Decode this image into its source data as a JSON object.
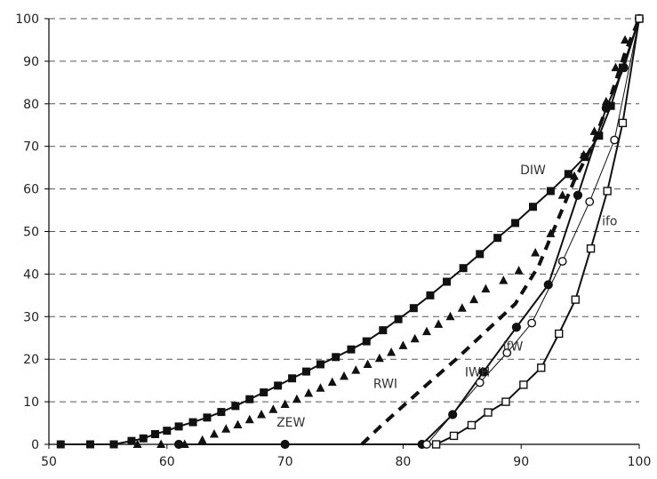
{
  "chart_data": {
    "type": "line",
    "title": "",
    "xlabel": "",
    "ylabel": "",
    "xlim": [
      50,
      100
    ],
    "ylim": [
      0,
      100
    ],
    "x_ticks": [
      50,
      60,
      70,
      80,
      90,
      100
    ],
    "y_ticks": [
      0,
      10,
      20,
      30,
      40,
      50,
      60,
      70,
      80,
      90,
      100
    ],
    "grid": "horizontal-dashed",
    "series": [
      {
        "name": "DIW",
        "style": "solid-line",
        "marker": "filled-square",
        "points": [
          [
            51,
            0
          ],
          [
            53.5,
            0
          ],
          [
            55.5,
            0
          ],
          [
            57,
            0.8
          ],
          [
            58,
            1.4
          ],
          [
            59,
            2.4
          ],
          [
            60,
            3.2
          ],
          [
            61,
            4.2
          ],
          [
            62.2,
            5.2
          ],
          [
            63.4,
            6.3
          ],
          [
            64.6,
            7.6
          ],
          [
            65.8,
            9
          ],
          [
            67,
            10.6
          ],
          [
            68.2,
            12.2
          ],
          [
            69.4,
            13.8
          ],
          [
            70.6,
            15.5
          ],
          [
            71.8,
            17.1
          ],
          [
            73,
            18.8
          ],
          [
            74.3,
            20.5
          ],
          [
            75.6,
            22.3
          ],
          [
            76.9,
            24.2
          ],
          [
            78.3,
            26.8
          ],
          [
            79.6,
            29.4
          ],
          [
            80.9,
            32
          ],
          [
            82.3,
            35
          ],
          [
            83.7,
            38.2
          ],
          [
            85.1,
            41.4
          ],
          [
            86.5,
            44.7
          ],
          [
            88,
            48.5
          ],
          [
            89.5,
            52
          ],
          [
            91,
            55.8
          ],
          [
            92.5,
            59.5
          ],
          [
            94,
            63.5
          ],
          [
            95.4,
            67.5
          ],
          [
            96.6,
            72.5
          ],
          [
            97.6,
            79.5
          ],
          [
            98.6,
            88.5
          ],
          [
            100,
            100
          ]
        ]
      },
      {
        "name": "ZEW",
        "style": "markers-only",
        "marker": "filled-triangle",
        "points": [
          [
            57.5,
            0
          ],
          [
            59.5,
            0
          ],
          [
            61.5,
            0
          ],
          [
            63,
            1
          ],
          [
            64,
            2.4
          ],
          [
            65,
            3.6
          ],
          [
            66,
            4.6
          ],
          [
            67,
            5.8
          ],
          [
            68,
            7
          ],
          [
            69,
            8.2
          ],
          [
            70,
            9.4
          ],
          [
            71,
            10.6
          ],
          [
            72,
            12
          ],
          [
            73,
            13.2
          ],
          [
            74,
            14.6
          ],
          [
            75,
            16
          ],
          [
            76,
            17.4
          ],
          [
            77,
            18.8
          ],
          [
            78,
            20.2
          ],
          [
            79,
            21.6
          ],
          [
            80,
            23.2
          ],
          [
            81,
            24.8
          ],
          [
            82,
            26.5
          ],
          [
            83,
            28.2
          ],
          [
            84,
            30
          ],
          [
            85,
            32
          ],
          [
            86,
            34
          ],
          [
            87,
            36.5
          ],
          [
            88.5,
            38.5
          ],
          [
            89.8,
            40.8
          ],
          [
            91.2,
            45
          ],
          [
            92.5,
            49.5
          ],
          [
            93.5,
            58.5
          ],
          [
            94.5,
            63
          ],
          [
            95.3,
            68
          ],
          [
            96.2,
            73.5
          ],
          [
            97.2,
            80.5
          ],
          [
            98,
            88.5
          ],
          [
            98.8,
            95
          ],
          [
            100,
            100
          ]
        ]
      },
      {
        "name": "RWI",
        "style": "dashed-line",
        "marker": "none",
        "points": [
          [
            76.5,
            0
          ],
          [
            78,
            4
          ],
          [
            80,
            9
          ],
          [
            82,
            14
          ],
          [
            84.5,
            20
          ],
          [
            87,
            26.5
          ],
          [
            89.5,
            33
          ],
          [
            91.5,
            42
          ],
          [
            93,
            52
          ],
          [
            94.5,
            62
          ],
          [
            96,
            70
          ],
          [
            97.5,
            81
          ],
          [
            98.8,
            92
          ],
          [
            100,
            100
          ]
        ]
      },
      {
        "name": "IWH",
        "style": "solid-line",
        "marker": "filled-circle",
        "points": [
          [
            61,
            0
          ],
          [
            70,
            0
          ],
          [
            81.6,
            0
          ],
          [
            84.2,
            7
          ],
          [
            86.8,
            17
          ],
          [
            89.6,
            27.5
          ],
          [
            92.3,
            37.5
          ],
          [
            94.8,
            58.5
          ],
          [
            97.2,
            79
          ],
          [
            98.7,
            88.5
          ],
          [
            100,
            100
          ]
        ]
      },
      {
        "name": "IfW",
        "style": "solid-line",
        "marker": "open-circle",
        "points": [
          [
            82,
            0
          ],
          [
            86.5,
            14.5
          ],
          [
            88.8,
            21.5
          ],
          [
            90.9,
            28.5
          ],
          [
            93.5,
            43
          ],
          [
            95.8,
            57
          ],
          [
            97.9,
            71.5
          ],
          [
            100,
            100
          ]
        ]
      },
      {
        "name": "ifo",
        "style": "solid-line",
        "marker": "open-square",
        "points": [
          [
            82.8,
            0
          ],
          [
            84.3,
            2
          ],
          [
            85.8,
            4.5
          ],
          [
            87.2,
            7.5
          ],
          [
            88.7,
            10
          ],
          [
            90.2,
            14
          ],
          [
            91.7,
            18
          ],
          [
            93.2,
            26
          ],
          [
            94.6,
            34
          ],
          [
            95.9,
            46
          ],
          [
            97.3,
            59.5
          ],
          [
            98.6,
            75.5
          ],
          [
            100,
            100
          ]
        ]
      }
    ],
    "annotations": [
      {
        "text": "DIW",
        "x": 91,
        "y": 63.5
      },
      {
        "text": "ifo",
        "x": 97.5,
        "y": 51.5
      },
      {
        "text": "IfW",
        "x": 89.3,
        "y": 22
      },
      {
        "text": "IWH",
        "x": 86.3,
        "y": 16
      },
      {
        "text": "RWI",
        "x": 78.5,
        "y": 13.3
      },
      {
        "text": "ZEW",
        "x": 70.5,
        "y": 4.2
      }
    ]
  }
}
